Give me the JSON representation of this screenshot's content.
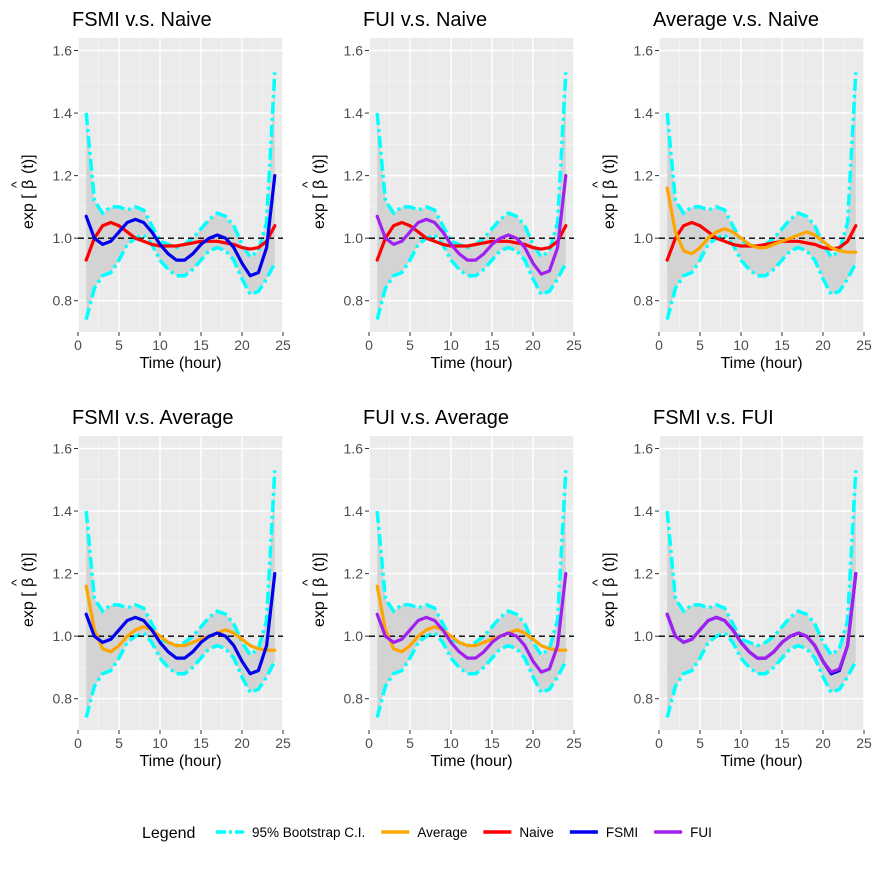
{
  "colors": {
    "ci": "#00ffff",
    "average": "#ffa500",
    "naive": "#ff0000",
    "fsmi": "#0000ee",
    "fui": "#a020f0",
    "panel": "#ebebeb",
    "ribbon": "#d3d3d3"
  },
  "shared": {
    "xlabel": "Time (hour)",
    "ylabel_prefix": "exp [",
    "ylabel_beta": "β",
    "ylabel_hat": "^",
    "ylabel_suffix": "(t)]",
    "xlim": [
      0,
      25
    ],
    "ylim": [
      0.7,
      1.64
    ],
    "xticks": [
      0,
      5,
      10,
      15,
      20,
      25
    ],
    "xtick_labels": [
      "0",
      "5",
      "10",
      "15",
      "20",
      "25"
    ],
    "yticks": [
      0.8,
      1.0,
      1.2,
      1.4,
      1.6
    ],
    "ytick_labels": [
      "0.8",
      "1.0",
      "1.2",
      "1.4",
      "1.6"
    ],
    "reference_y": 1.0
  },
  "legend": {
    "title": "Legend",
    "items": [
      {
        "key": "ci",
        "label": "95% Bootstrap C.I."
      },
      {
        "key": "average",
        "label": "Average"
      },
      {
        "key": "naive",
        "label": "Naive"
      },
      {
        "key": "fsmi",
        "label": "FSMI"
      },
      {
        "key": "fui",
        "label": "FUI"
      }
    ]
  },
  "chart_data": {
    "type": "line",
    "x": [
      1,
      2,
      3,
      4,
      5,
      6,
      7,
      8,
      9,
      10,
      11,
      12,
      13,
      14,
      15,
      16,
      17,
      18,
      19,
      20,
      21,
      22,
      23,
      24
    ],
    "ci_upper": [
      1.4,
      1.12,
      1.08,
      1.1,
      1.1,
      1.09,
      1.1,
      1.09,
      1.04,
      0.99,
      0.98,
      0.97,
      0.98,
      1.0,
      1.03,
      1.06,
      1.08,
      1.07,
      1.04,
      0.98,
      0.94,
      0.96,
      1.05,
      1.53
    ],
    "ci_lower": [
      0.74,
      0.84,
      0.88,
      0.89,
      0.93,
      0.98,
      1.0,
      1.01,
      0.98,
      0.93,
      0.9,
      0.88,
      0.88,
      0.9,
      0.93,
      0.96,
      0.97,
      0.96,
      0.93,
      0.87,
      0.82,
      0.83,
      0.87,
      0.92
    ],
    "series": [
      {
        "name": "Average",
        "key": "average",
        "values": [
          1.16,
          1.02,
          0.96,
          0.95,
          0.97,
          1.0,
          1.02,
          1.03,
          1.02,
          1.0,
          0.98,
          0.97,
          0.97,
          0.98,
          0.99,
          1.0,
          1.01,
          1.02,
          1.01,
          0.99,
          0.97,
          0.96,
          0.955,
          0.955
        ]
      },
      {
        "name": "Naive",
        "key": "naive",
        "values": [
          0.93,
          1.0,
          1.04,
          1.05,
          1.04,
          1.02,
          1.0,
          0.99,
          0.98,
          0.975,
          0.975,
          0.975,
          0.98,
          0.985,
          0.99,
          0.99,
          0.99,
          0.985,
          0.98,
          0.97,
          0.965,
          0.97,
          0.99,
          1.04
        ]
      },
      {
        "name": "FSMI",
        "key": "fsmi",
        "values": [
          1.07,
          1.0,
          0.98,
          0.99,
          1.02,
          1.05,
          1.06,
          1.05,
          1.02,
          0.98,
          0.95,
          0.93,
          0.93,
          0.95,
          0.98,
          1.0,
          1.01,
          1.0,
          0.97,
          0.92,
          0.88,
          0.89,
          0.97,
          1.2
        ]
      },
      {
        "name": "FUI",
        "key": "fui",
        "values": [
          1.07,
          1.0,
          0.98,
          0.99,
          1.02,
          1.05,
          1.06,
          1.05,
          1.02,
          0.98,
          0.95,
          0.93,
          0.93,
          0.95,
          0.98,
          1.0,
          1.01,
          1.0,
          0.97,
          0.92,
          0.885,
          0.895,
          0.97,
          1.2
        ]
      }
    ],
    "panels": [
      {
        "title": "FSMI v.s. Naive",
        "series": [
          "naive",
          "fsmi"
        ]
      },
      {
        "title": "FUI v.s. Naive",
        "series": [
          "naive",
          "fui"
        ]
      },
      {
        "title": "Average v.s. Naive",
        "series": [
          "naive",
          "average"
        ]
      },
      {
        "title": "FSMI v.s. Average",
        "series": [
          "average",
          "fsmi"
        ]
      },
      {
        "title": "FUI v.s. Average",
        "series": [
          "average",
          "fui"
        ]
      },
      {
        "title": "FSMI v.s. FUI",
        "series": [
          "fsmi",
          "fui"
        ]
      }
    ]
  }
}
